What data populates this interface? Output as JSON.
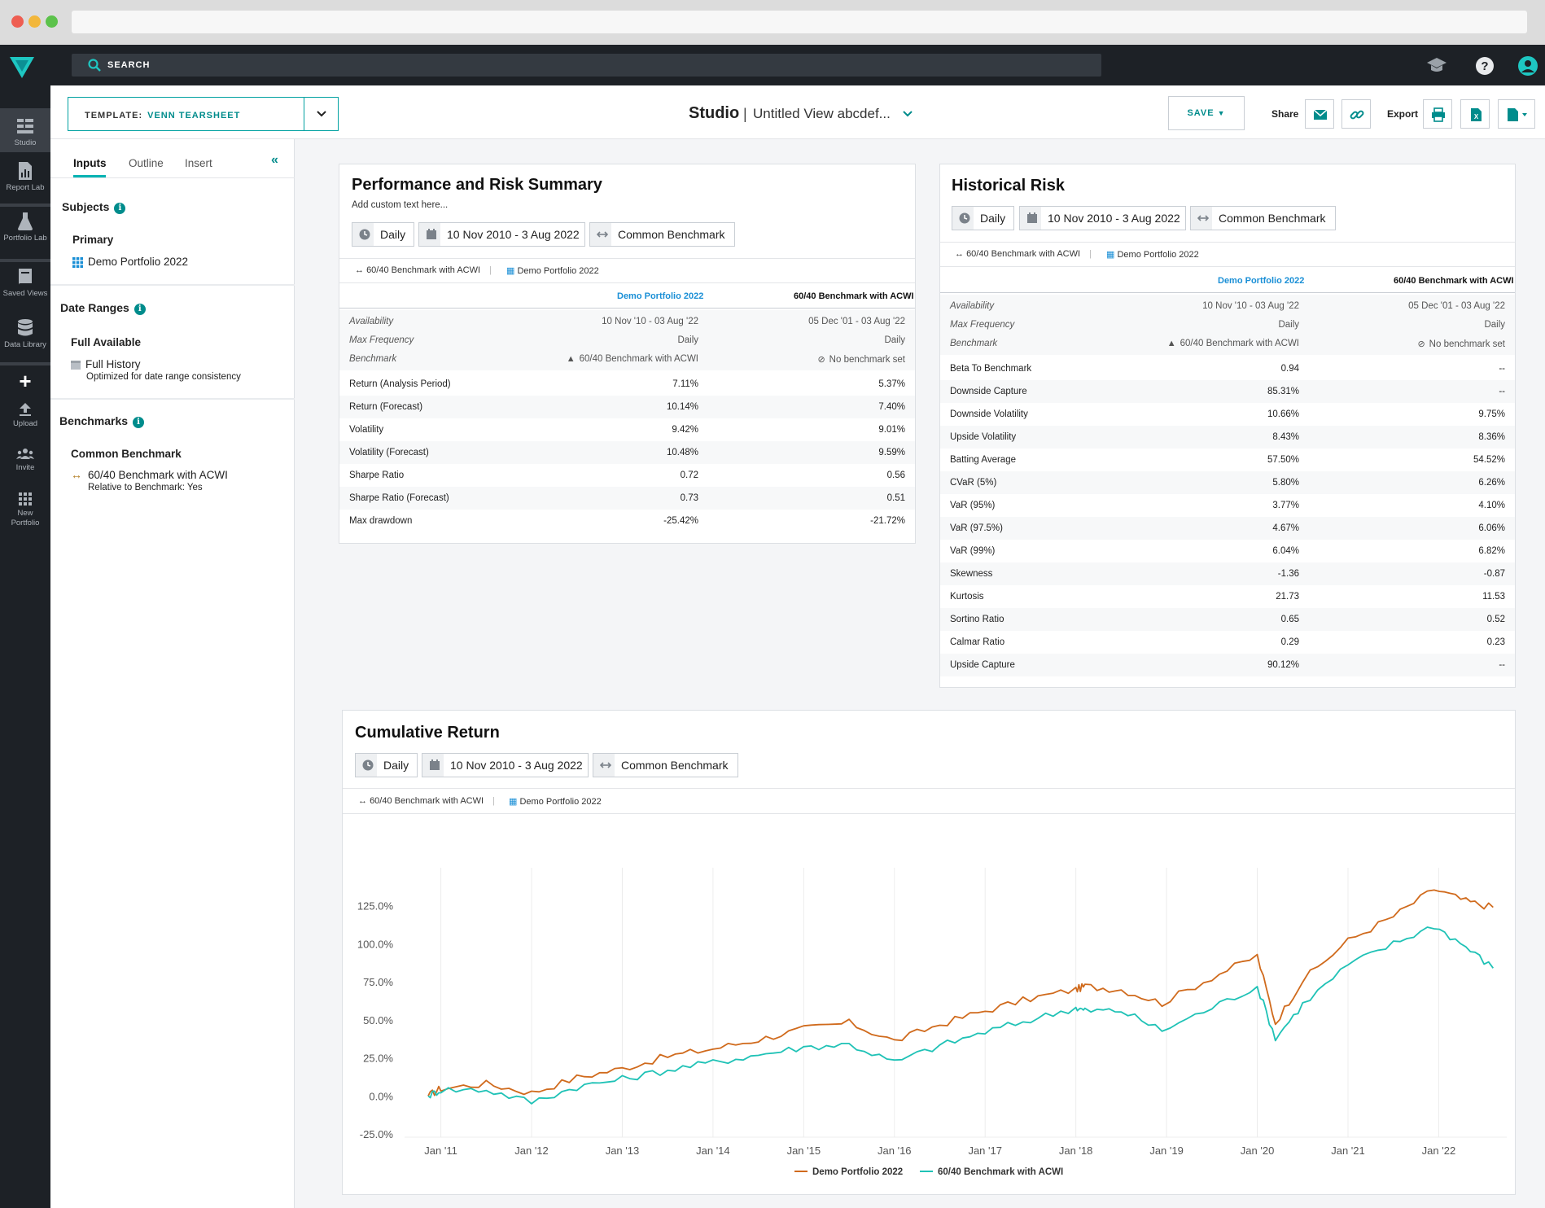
{
  "header": {
    "search_label": "SEARCH",
    "template_label": "TEMPLATE:",
    "template_value": "VENN TEARSHEET",
    "studio_title": "Studio",
    "separator": "|",
    "view_name": "Untitled View abcdef...",
    "save_label": "SAVE",
    "share_label": "Share",
    "export_label": "Export"
  },
  "rail": {
    "items": [
      {
        "label": "Studio",
        "icon": "studio-icon"
      },
      {
        "label": "Report Lab",
        "icon": "report-lab-icon"
      },
      {
        "label": "Portfolio Lab",
        "icon": "portfolio-lab-icon"
      },
      {
        "label": "Saved Views",
        "icon": "saved-views-icon"
      },
      {
        "label": "Data Library",
        "icon": "data-library-icon"
      },
      {
        "label": "Upload",
        "icon": "upload-icon"
      },
      {
        "label": "Invite",
        "icon": "invite-icon"
      },
      {
        "label": "New Portfolio",
        "icon": "new-portfolio-icon"
      }
    ]
  },
  "panel": {
    "tabs": [
      "Inputs",
      "Outline",
      "Insert"
    ],
    "subjects_title": "Subjects",
    "primary_title": "Primary",
    "primary_value": "Demo Portfolio 2022",
    "date_ranges_title": "Date Ranges",
    "full_available": "Full Available",
    "full_history": "Full History",
    "optimized_note": "Optimized for date range consistency",
    "benchmarks_title": "Benchmarks",
    "common_benchmark": "Common Benchmark",
    "benchmark_name": "60/40 Benchmark with ACWI",
    "relative_note": "Relative to Benchmark: Yes"
  },
  "chips": {
    "frequency": "Daily",
    "date_range": "10 Nov 2010 - 3 Aug 2022",
    "benchmark": "Common Benchmark"
  },
  "legend": {
    "benchmark": "60/40 Benchmark with ACWI",
    "portfolio": "Demo Portfolio 2022"
  },
  "perf": {
    "title": "Performance and Risk Summary",
    "subtitle": "Add custom text here...",
    "col1": "Demo Portfolio 2022",
    "col2": "60/40 Benchmark with ACWI",
    "meta": [
      {
        "label": "Availability",
        "v1": "10 Nov '10 - 03 Aug '22",
        "v2": "05 Dec '01 - 03 Aug '22"
      },
      {
        "label": "Max Frequency",
        "v1": "Daily",
        "v2": "Daily"
      },
      {
        "label": "Benchmark",
        "v1": "60/40 Benchmark with ACWI",
        "v2": "No benchmark set"
      }
    ],
    "rows": [
      {
        "label": "Return (Analysis Period)",
        "v1": "7.11%",
        "v2": "5.37%"
      },
      {
        "label": "Return (Forecast)",
        "v1": "10.14%",
        "v2": "7.40%"
      },
      {
        "label": "Volatility",
        "v1": "9.42%",
        "v2": "9.01%"
      },
      {
        "label": "Volatility (Forecast)",
        "v1": "10.48%",
        "v2": "9.59%"
      },
      {
        "label": "Sharpe Ratio",
        "v1": "0.72",
        "v2": "0.56"
      },
      {
        "label": "Sharpe Ratio (Forecast)",
        "v1": "0.73",
        "v2": "0.51"
      },
      {
        "label": "Max drawdown",
        "v1": "-25.42%",
        "v2": "-21.72%"
      }
    ]
  },
  "hist": {
    "title": "Historical Risk",
    "col1": "Demo Portfolio 2022",
    "col2": "60/40 Benchmark with ACWI",
    "meta": [
      {
        "label": "Availability",
        "v1": "10 Nov '10 - 03 Aug '22",
        "v2": "05 Dec '01 - 03 Aug '22"
      },
      {
        "label": "Max Frequency",
        "v1": "Daily",
        "v2": "Daily"
      },
      {
        "label": "Benchmark",
        "v1": "60/40 Benchmark with ACWI",
        "v2": "No benchmark set"
      }
    ],
    "rows": [
      {
        "label": "Beta To Benchmark",
        "v1": "0.94",
        "v2": "--"
      },
      {
        "label": "Downside Capture",
        "v1": "85.31%",
        "v2": "--"
      },
      {
        "label": "Downside Volatility",
        "v1": "10.66%",
        "v2": "9.75%"
      },
      {
        "label": "Upside Volatility",
        "v1": "8.43%",
        "v2": "8.36%"
      },
      {
        "label": "Batting Average",
        "v1": "57.50%",
        "v2": "54.52%"
      },
      {
        "label": "CVaR (5%)",
        "v1": "5.80%",
        "v2": "6.26%"
      },
      {
        "label": "VaR (95%)",
        "v1": "3.77%",
        "v2": "4.10%"
      },
      {
        "label": "VaR (97.5%)",
        "v1": "4.67%",
        "v2": "6.06%"
      },
      {
        "label": "VaR (99%)",
        "v1": "6.04%",
        "v2": "6.82%"
      },
      {
        "label": "Skewness",
        "v1": "-1.36",
        "v2": "-0.87"
      },
      {
        "label": "Kurtosis",
        "v1": "21.73",
        "v2": "11.53"
      },
      {
        "label": "Sortino Ratio",
        "v1": "0.65",
        "v2": "0.52"
      },
      {
        "label": "Calmar Ratio",
        "v1": "0.29",
        "v2": "0.23"
      },
      {
        "label": "Upside Capture",
        "v1": "90.12%",
        "v2": "--"
      }
    ]
  },
  "cumulative": {
    "title": "Cumulative Return"
  },
  "chart_data": {
    "type": "line",
    "title": "Cumulative Return",
    "x": [
      2010.86,
      2011.0,
      2011.5,
      2012.0,
      2012.5,
      2013.0,
      2013.5,
      2014.0,
      2014.5,
      2015.0,
      2015.5,
      2016.0,
      2016.5,
      2017.0,
      2017.5,
      2018.0,
      2018.1,
      2018.5,
      2018.95,
      2019.5,
      2020.0,
      2020.2,
      2020.5,
      2021.0,
      2021.5,
      2021.95,
      2022.3,
      2022.6
    ],
    "x_ticks": [
      "Jan '11",
      "Jan '12",
      "Jan '13",
      "Jan '14",
      "Jan '15",
      "Jan '16",
      "Jan '17",
      "Jan '18",
      "Jan '19",
      "Jan '20",
      "Jan '21",
      "Jan '22"
    ],
    "y_ticks": [
      "125.0%",
      "100.0%",
      "75.0%",
      "50.0%",
      "25.0%",
      "0.0%",
      "-25.0%"
    ],
    "ylim": [
      -25,
      150
    ],
    "series": [
      {
        "name": "Demo Portfolio 2022",
        "color": "#d06a1c",
        "values": [
          0,
          5,
          8,
          2,
          12,
          18,
          26,
          31,
          37,
          44,
          48,
          36,
          47,
          56,
          64,
          70,
          72,
          70,
          61,
          78,
          92,
          48,
          76,
          102,
          118,
          136,
          128,
          124
        ]
      },
      {
        "name": "60/40 Benchmark with ACWI",
        "color": "#1fc2b6",
        "values": [
          0,
          4,
          4,
          -4,
          6,
          11,
          17,
          22,
          27,
          32,
          34,
          22,
          33,
          42,
          50,
          58,
          56,
          56,
          43,
          58,
          72,
          38,
          60,
          86,
          100,
          112,
          98,
          84
        ]
      }
    ],
    "legend_position": "bottom",
    "grid": true
  }
}
